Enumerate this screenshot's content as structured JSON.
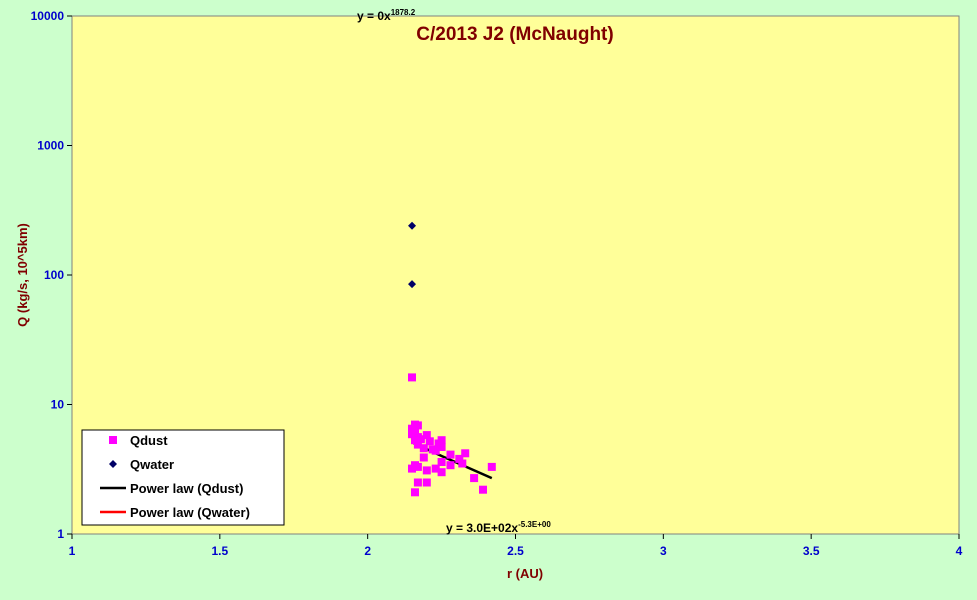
{
  "chart_data": {
    "type": "scatter",
    "title": "C/2013 J2 (McNaught)",
    "xlabel": "r (AU)",
    "ylabel": "Q (kg/s, 10^5km)",
    "xlim": [
      1,
      4
    ],
    "ylim": [
      1,
      10000
    ],
    "y_scale": "log",
    "x_ticks": [
      "1",
      "1.5",
      "2",
      "2.5",
      "3",
      "3.5",
      "4"
    ],
    "y_ticks": [
      "1",
      "10",
      "100",
      "1000",
      "10000"
    ],
    "grid": false,
    "legend_position": "bottom-left",
    "colors": {
      "figure_bg": "#ccffcc",
      "plot_bg": "#ffff99",
      "title": "#800000",
      "tick_label": "#0000cc",
      "qdust": "#ff00ff",
      "qwater": "#000066",
      "power_law_qdust": "#000000",
      "power_law_qwater": "#ff0000"
    },
    "series": [
      {
        "name": "Qdust",
        "marker": "square",
        "points": [
          [
            2.15,
            16.2
          ],
          [
            2.15,
            6.5
          ],
          [
            2.16,
            7.0
          ],
          [
            2.17,
            6.9
          ],
          [
            2.16,
            6.2
          ],
          [
            2.15,
            5.9
          ],
          [
            2.17,
            5.6
          ],
          [
            2.16,
            5.3
          ],
          [
            2.18,
            5.4
          ],
          [
            2.2,
            5.8
          ],
          [
            2.21,
            5.2
          ],
          [
            2.24,
            5.0
          ],
          [
            2.25,
            5.3
          ],
          [
            2.25,
            4.7
          ],
          [
            2.17,
            4.9
          ],
          [
            2.19,
            4.6
          ],
          [
            2.22,
            4.5
          ],
          [
            2.23,
            4.4
          ],
          [
            2.28,
            4.1
          ],
          [
            2.33,
            4.2
          ],
          [
            2.19,
            3.9
          ],
          [
            2.25,
            3.6
          ],
          [
            2.31,
            3.8
          ],
          [
            2.16,
            3.4
          ],
          [
            2.15,
            3.2
          ],
          [
            2.17,
            3.3
          ],
          [
            2.2,
            3.1
          ],
          [
            2.23,
            3.2
          ],
          [
            2.25,
            3.0
          ],
          [
            2.28,
            3.4
          ],
          [
            2.32,
            3.5
          ],
          [
            2.42,
            3.3
          ],
          [
            2.36,
            2.7
          ],
          [
            2.17,
            2.5
          ],
          [
            2.2,
            2.5
          ],
          [
            2.16,
            2.1
          ],
          [
            2.39,
            2.2
          ]
        ]
      },
      {
        "name": "Qwater",
        "marker": "diamond",
        "points": [
          [
            2.15,
            240
          ],
          [
            2.15,
            85
          ]
        ]
      },
      {
        "name": "Power law (Qdust)",
        "type": "line",
        "points": [
          [
            2.15,
            5.1
          ],
          [
            2.25,
            4.0
          ],
          [
            2.42,
            2.7
          ]
        ]
      },
      {
        "name": "Power law (Qwater)",
        "type": "line",
        "points": []
      }
    ],
    "annotations": {
      "water_fit": "y = 0x",
      "water_fit_exp": "1878.2",
      "dust_fit": "y = 3.0E+02x",
      "dust_fit_exp": "-5.3E+00"
    }
  }
}
